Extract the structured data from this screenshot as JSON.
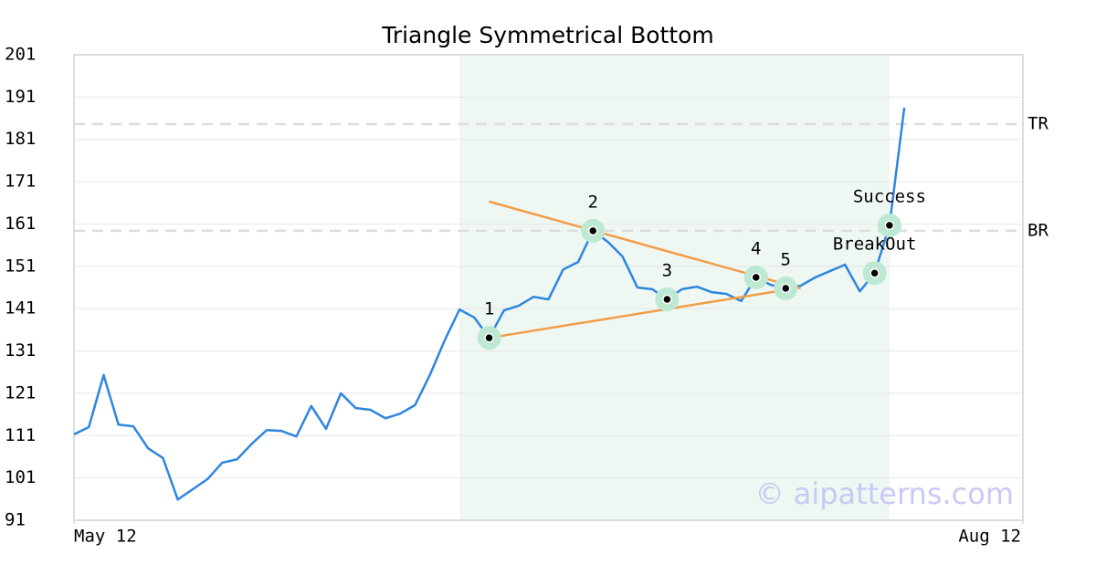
{
  "chart_data": {
    "type": "line",
    "title": "Triangle Symmetrical Bottom",
    "x": [
      0,
      1,
      2,
      3,
      4,
      5,
      6,
      7,
      8,
      9,
      10,
      11,
      12,
      13,
      14,
      15,
      16,
      17,
      18,
      19,
      20,
      21,
      22,
      23,
      24,
      25,
      26,
      27,
      28,
      29,
      30,
      31,
      32,
      33,
      34,
      35,
      36,
      37,
      38,
      39,
      40,
      41,
      42,
      43,
      44,
      45,
      46,
      47,
      48,
      49,
      50,
      51,
      52,
      53,
      54,
      55,
      56
    ],
    "series": [
      {
        "color": "#2e86de",
        "values": [
          111.3,
          113.0,
          125.3,
          113.6,
          113.2,
          108.0,
          105.7,
          95.9,
          98.3,
          100.7,
          104.6,
          105.4,
          109.1,
          112.3,
          112.1,
          110.8,
          118.0,
          112.6,
          121.0,
          117.5,
          117.1,
          115.1,
          116.2,
          118.2,
          125.3,
          133.5,
          140.8,
          138.9,
          134.1,
          140.6,
          141.7,
          143.8,
          143.2,
          150.3,
          152.0,
          159.4,
          156.8,
          153.3,
          146.0,
          145.6,
          143.2,
          145.6,
          146.2,
          144.9,
          144.5,
          142.8,
          148.4,
          146.6,
          145.8,
          146.4,
          148.4,
          149.9,
          151.4,
          145.1,
          149.4,
          160.7,
          188.5
        ]
      }
    ],
    "xlim": [
      0,
      64
    ],
    "xticks": [
      {
        "value": 0,
        "label": "May 12"
      },
      {
        "value": 64,
        "label": "Aug 12"
      }
    ],
    "ylim": [
      91,
      201
    ],
    "yticks": [
      91,
      101,
      111,
      121,
      131,
      141,
      151,
      161,
      171,
      181,
      191,
      201
    ],
    "grid": true,
    "shaded_region": {
      "x": [
        26,
        55
      ],
      "color": "#eef7f2"
    },
    "hlines": [
      {
        "label": "TR",
        "value": 184.6
      },
      {
        "label": "BR",
        "value": 159.4
      }
    ],
    "trendlines": [
      {
        "color": "#f39c45",
        "x": [
          28,
          49
        ],
        "values": [
          166.3,
          145.8
        ]
      },
      {
        "color": "#f39c45",
        "x": [
          28,
          49
        ],
        "values": [
          134.1,
          146.0
        ]
      }
    ],
    "pattern_points": [
      {
        "label": "1",
        "x": 28,
        "value": 134.1
      },
      {
        "label": "2",
        "x": 35,
        "value": 159.4
      },
      {
        "label": "3",
        "x": 40,
        "value": 143.2
      },
      {
        "label": "4",
        "x": 46,
        "value": 148.4
      },
      {
        "label": "5",
        "x": 48,
        "value": 145.8
      },
      {
        "label": "BreakOut",
        "x": 54,
        "value": 149.4
      },
      {
        "label": "Success",
        "x": 55,
        "value": 160.7
      }
    ],
    "watermark": "© aipatterns.com"
  }
}
